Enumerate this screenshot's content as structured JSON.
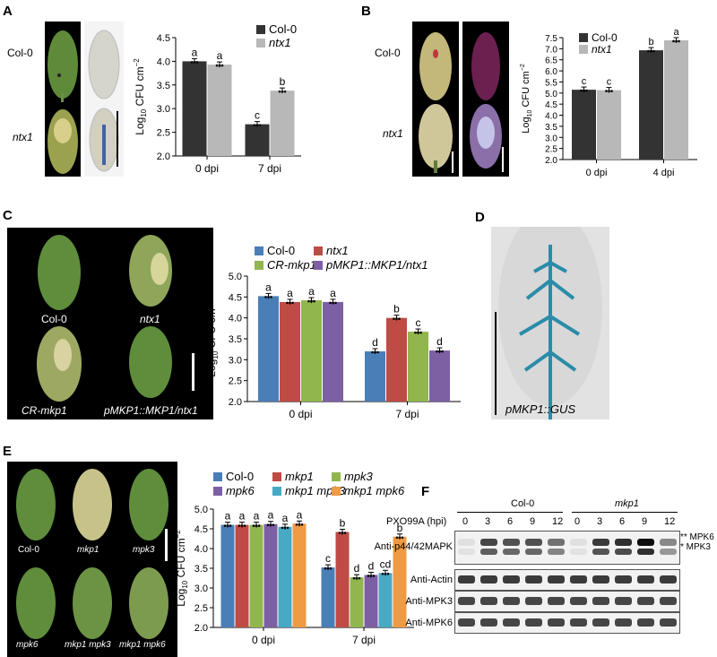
{
  "panels": {
    "A": {
      "label": "A",
      "row_labels": [
        "Col-0",
        "ntx1"
      ],
      "chart_data": {
        "type": "bar",
        "categories": [
          "0 dpi",
          "7 dpi"
        ],
        "series": [
          {
            "name": "Col-0",
            "values": [
              4.0,
              2.67
            ],
            "letters": [
              "a",
              "c"
            ]
          },
          {
            "name": "ntx1",
            "values": [
              3.93,
              3.38
            ],
            "letters": [
              "a",
              "b"
            ]
          }
        ],
        "ylabel": "Log10 CFU cm-2",
        "ylim": [
          2.0,
          4.5
        ],
        "yticks": [
          "2.0",
          "2.5",
          "3.0",
          "3.5",
          "4.0",
          "4.5"
        ],
        "colors": [
          "#333333",
          "#b8b8b8"
        ]
      }
    },
    "B": {
      "label": "B",
      "row_labels": [
        "Col-0",
        "ntx1"
      ],
      "chart_data": {
        "type": "bar",
        "categories": [
          "0 dpi",
          "4 dpi"
        ],
        "series": [
          {
            "name": "Col-0",
            "values": [
              5.15,
              6.93
            ],
            "letters": [
              "c",
              "b"
            ]
          },
          {
            "name": "ntx1",
            "values": [
              5.13,
              7.38
            ],
            "letters": [
              "c",
              "a"
            ]
          }
        ],
        "ylabel": "Log10 CFU cm-2",
        "ylim": [
          2.0,
          7.5
        ],
        "yticks": [
          "2.0",
          "2.5",
          "3.0",
          "3.5",
          "4.0",
          "4.5",
          "5.0",
          "5.5",
          "6.0",
          "6.5",
          "7.0",
          "7.5"
        ],
        "colors": [
          "#333333",
          "#b8b8b8"
        ]
      }
    },
    "C": {
      "label": "C",
      "photo_labels": [
        "Col-0",
        "ntx1",
        "CR-mkp1",
        "pMKP1::MKP1/ntx1"
      ],
      "chart_data": {
        "type": "bar",
        "categories": [
          "0 dpi",
          "7 dpi"
        ],
        "series": [
          {
            "name": "Col-0",
            "values": [
              4.52,
              3.2
            ],
            "letters": [
              "a",
              "d"
            ]
          },
          {
            "name": "ntx1",
            "values": [
              4.38,
              4.0
            ],
            "letters": [
              "a",
              "b"
            ]
          },
          {
            "name": "CR-mkp1",
            "values": [
              4.42,
              3.67
            ],
            "letters": [
              "a",
              "c"
            ]
          },
          {
            "name": "pMKP1::MKP1/ntx1",
            "values": [
              4.38,
              3.22
            ],
            "letters": [
              "a",
              "d"
            ]
          }
        ],
        "ylabel": "Log10 CFU cm-2",
        "ylim": [
          2.0,
          5.0
        ],
        "yticks": [
          "2.0",
          "2.5",
          "3.0",
          "3.5",
          "4.0",
          "4.5",
          "5.0"
        ],
        "colors": [
          "#4a7eb7",
          "#bf4b45",
          "#90b64d",
          "#7d5fa4"
        ]
      }
    },
    "D": {
      "label": "D",
      "caption": "pMKP1::GUS"
    },
    "E": {
      "label": "E",
      "photo_labels": [
        "Col-0",
        "mkp1",
        "mpk3",
        "mpk6",
        "mkp1 mpk3",
        "mkp1 mpk6"
      ],
      "chart_data": {
        "type": "bar",
        "categories": [
          "0 dpi",
          "7 dpi"
        ],
        "series": [
          {
            "name": "Col-0",
            "values": [
              4.6,
              3.52
            ],
            "letters": [
              "a",
              "c"
            ]
          },
          {
            "name": "mkp1",
            "values": [
              4.6,
              4.42
            ],
            "letters": [
              "a",
              "b"
            ]
          },
          {
            "name": "mpk3",
            "values": [
              4.6,
              3.27
            ],
            "letters": [
              "a",
              "d"
            ]
          },
          {
            "name": "mpk6",
            "values": [
              4.62,
              3.33
            ],
            "letters": [
              "a",
              "d"
            ]
          },
          {
            "name": "mkp1 mpk3",
            "values": [
              4.55,
              3.38
            ],
            "letters": [
              "a",
              "cd"
            ]
          },
          {
            "name": "mkp1 mpk6",
            "values": [
              4.63,
              4.3
            ],
            "letters": [
              "a",
              "b"
            ]
          }
        ],
        "ylabel": "Log10 CFU cm-2",
        "ylim": [
          2.0,
          5.0
        ],
        "yticks": [
          "2.0",
          "2.5",
          "3.0",
          "3.5",
          "4.0",
          "4.5",
          "5.0"
        ],
        "colors": [
          "#4a7eb7",
          "#bf4b45",
          "#90b64d",
          "#7d5fa4",
          "#48a9c5",
          "#ef9a44"
        ]
      }
    },
    "F": {
      "label": "F",
      "group_labels": [
        "Col-0",
        "mkp1"
      ],
      "time_label": "PXO99A (hpi)",
      "timepoints": [
        "0",
        "3",
        "6",
        "9",
        "12",
        "0",
        "3",
        "6",
        "9",
        "12"
      ],
      "blot_labels": [
        "Anti-p44/42MAPK",
        "Anti-Actin",
        "Anti-MPK3",
        "Anti-MPK6"
      ],
      "band_labels": [
        "** MPK6",
        "* MPK3"
      ],
      "p44_intensity": [
        0.05,
        0.75,
        0.7,
        0.7,
        0.55,
        0.05,
        0.8,
        0.85,
        1.0,
        0.45
      ]
    }
  }
}
